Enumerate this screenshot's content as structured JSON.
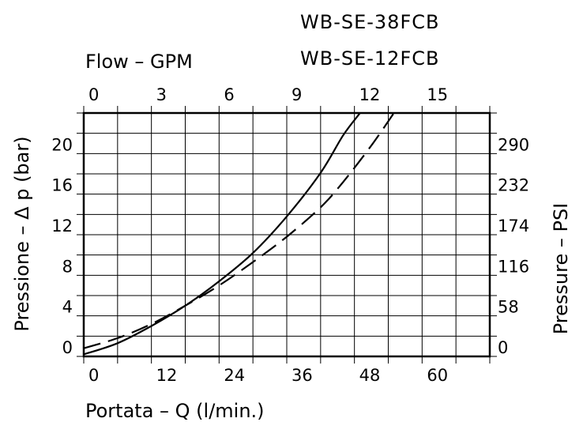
{
  "chart_data": {
    "type": "line",
    "models": [
      "WB-SE-38FCB",
      "WB-SE-12FCB"
    ],
    "x_bottom": {
      "label": "Portata  –  Q  (l/min.)",
      "min": 0,
      "max": 72,
      "ticks": [
        "0",
        "12",
        "24",
        "36",
        "48",
        "60"
      ]
    },
    "x_top": {
      "label": "Flow  –  GPM",
      "ticks": [
        "0",
        "3",
        "6",
        "9",
        "12",
        "15"
      ]
    },
    "y_left": {
      "label": "Pressione  –  Δ p  (bar)",
      "min": 0,
      "max": 24,
      "ticks": [
        "0",
        "4",
        "8",
        "12",
        "16",
        "20"
      ]
    },
    "y_right": {
      "label": "Pressure  –  PSI",
      "ticks": [
        "0",
        "58",
        "116",
        "174",
        "232",
        "290"
      ]
    },
    "grid": true,
    "series": [
      {
        "style": "solid",
        "color": "#000000",
        "x": [
          0,
          6,
          12,
          18,
          24,
          30,
          36,
          42,
          46,
          49
        ],
        "y": [
          0.2,
          1.3,
          3.0,
          5.0,
          7.4,
          10.2,
          13.8,
          18.1,
          21.8,
          24.0
        ]
      },
      {
        "style": "dashed",
        "color": "#000000",
        "x": [
          0,
          6,
          12,
          18,
          24,
          30,
          36,
          42,
          46,
          51,
          55
        ],
        "y": [
          0.8,
          1.8,
          3.2,
          5.0,
          7.0,
          9.3,
          11.8,
          14.7,
          17.2,
          20.8,
          24.0
        ]
      }
    ]
  }
}
